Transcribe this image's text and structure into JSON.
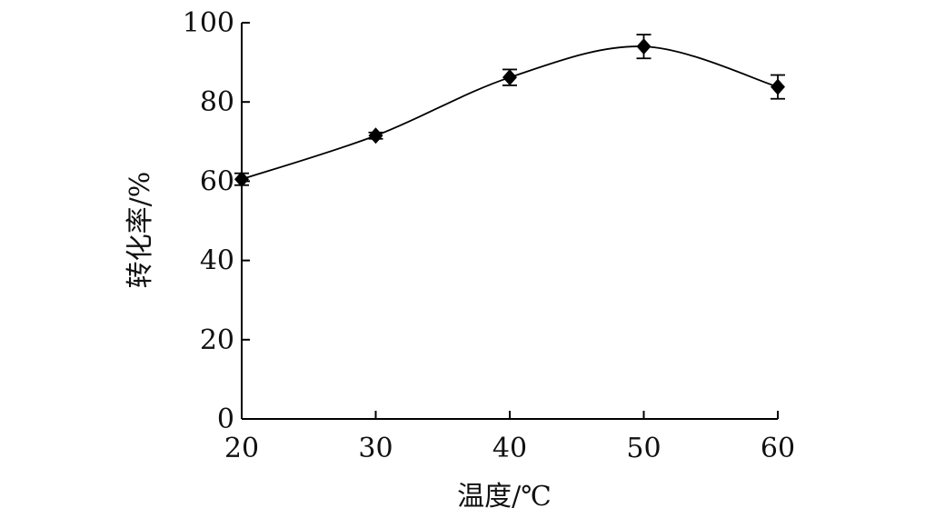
{
  "chart_data": {
    "type": "line",
    "title": "",
    "xlabel": "温度/℃",
    "ylabel": "转化率/%",
    "x": [
      20,
      30,
      40,
      50,
      60
    ],
    "x_ticks": [
      "20",
      "30",
      "40",
      "50",
      "60"
    ],
    "y_ticks": [
      "0",
      "20",
      "40",
      "60",
      "80",
      "100"
    ],
    "xlim": [
      20,
      60
    ],
    "ylim": [
      0,
      100
    ],
    "grid": false,
    "legend": "none",
    "series": [
      {
        "values": [
          60.5,
          71.5,
          86.2,
          94.0,
          83.8
        ],
        "errors": [
          1.5,
          0.8,
          2.0,
          3.0,
          3.0
        ],
        "marker": "diamond",
        "color": "#000000",
        "smooth": true
      }
    ]
  }
}
